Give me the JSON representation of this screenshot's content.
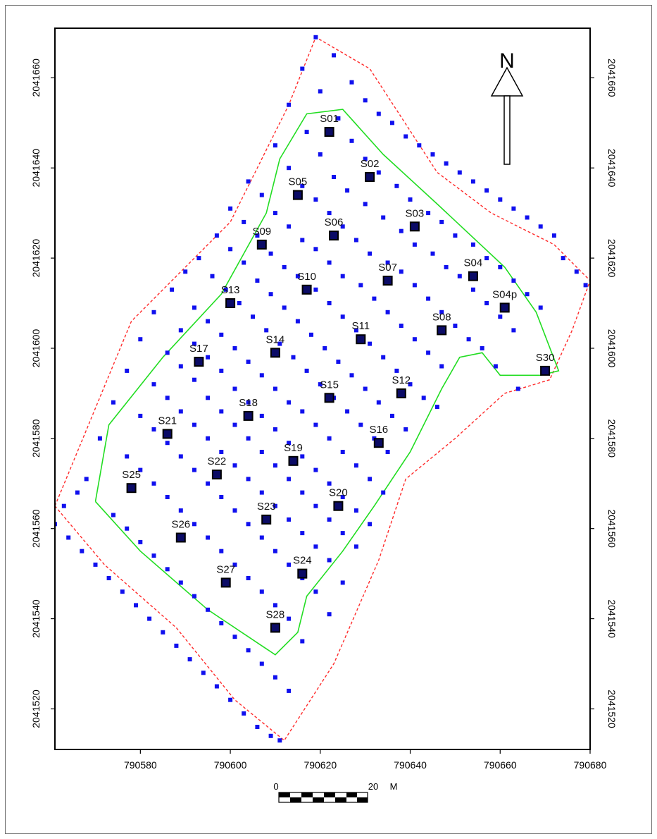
{
  "colors": {
    "boundary": "#ff2b2b",
    "inner_boundary": "#22dd22",
    "point": "#1010ee",
    "station_fill": "#0b0b66",
    "frame": "#000000"
  },
  "north_arrow": {
    "label": "N",
    "icon": "north-arrow-icon"
  },
  "scale_bar": {
    "start_label": "0",
    "end_label": "20",
    "unit_label": "M"
  },
  "axes": {
    "x_ticks": [
      {
        "value": 790580,
        "label": "790580"
      },
      {
        "value": 790600,
        "label": "790600"
      },
      {
        "value": 790620,
        "label": "790620"
      },
      {
        "value": 790640,
        "label": "790640"
      },
      {
        "value": 790660,
        "label": "790660"
      },
      {
        "value": 790680,
        "label": "790680"
      }
    ],
    "y_ticks": [
      {
        "value": 2041520,
        "label": "2041520"
      },
      {
        "value": 2041540,
        "label": "2041540"
      },
      {
        "value": 2041560,
        "label": "2041560"
      },
      {
        "value": 2041580,
        "label": "2041580"
      },
      {
        "value": 2041600,
        "label": "2041600"
      },
      {
        "value": 2041620,
        "label": "2041620"
      },
      {
        "value": 2041640,
        "label": "2041640"
      },
      {
        "value": 2041660,
        "label": "2041660"
      }
    ],
    "x_range": [
      790561,
      790680
    ],
    "y_range": [
      2041511,
      2041671
    ]
  },
  "stations": [
    {
      "label": "S01",
      "x": 790622,
      "y": 2041648
    },
    {
      "label": "S02",
      "x": 790631,
      "y": 2041638
    },
    {
      "label": "S03",
      "x": 790641,
      "y": 2041627
    },
    {
      "label": "S04",
      "x": 790654,
      "y": 2041616
    },
    {
      "label": "S04p",
      "x": 790661,
      "y": 2041609
    },
    {
      "label": "S05",
      "x": 790615,
      "y": 2041634
    },
    {
      "label": "S06",
      "x": 790623,
      "y": 2041625
    },
    {
      "label": "S07",
      "x": 790635,
      "y": 2041615
    },
    {
      "label": "S08",
      "x": 790647,
      "y": 2041604
    },
    {
      "label": "S09",
      "x": 790607,
      "y": 2041623
    },
    {
      "label": "S10",
      "x": 790617,
      "y": 2041613
    },
    {
      "label": "S11",
      "x": 790629,
      "y": 2041602
    },
    {
      "label": "S12",
      "x": 790638,
      "y": 2041590
    },
    {
      "label": "S13",
      "x": 790600,
      "y": 2041610
    },
    {
      "label": "S14",
      "x": 790610,
      "y": 2041599
    },
    {
      "label": "S15",
      "x": 790622,
      "y": 2041589
    },
    {
      "label": "S16",
      "x": 790633,
      "y": 2041579
    },
    {
      "label": "S17",
      "x": 790593,
      "y": 2041597
    },
    {
      "label": "S18",
      "x": 790604,
      "y": 2041585
    },
    {
      "label": "S19",
      "x": 790614,
      "y": 2041575
    },
    {
      "label": "S20",
      "x": 790624,
      "y": 2041565
    },
    {
      "label": "S21",
      "x": 790586,
      "y": 2041581
    },
    {
      "label": "S22",
      "x": 790597,
      "y": 2041572
    },
    {
      "label": "S23",
      "x": 790608,
      "y": 2041562
    },
    {
      "label": "S24",
      "x": 790616,
      "y": 2041550
    },
    {
      "label": "S25",
      "x": 790578,
      "y": 2041569
    },
    {
      "label": "S26",
      "x": 790589,
      "y": 2041558
    },
    {
      "label": "S27",
      "x": 790599,
      "y": 2041548
    },
    {
      "label": "S28",
      "x": 790610,
      "y": 2041538
    },
    {
      "label": "S30",
      "x": 790670,
      "y": 2041595
    }
  ],
  "outer_boundary": [
    [
      790561,
      2041565
    ],
    [
      790578,
      2041606
    ],
    [
      790600,
      2041628
    ],
    [
      790613,
      2041654
    ],
    [
      790619,
      2041669
    ],
    [
      790631,
      2041662
    ],
    [
      790646,
      2041639
    ],
    [
      790658,
      2041630
    ],
    [
      790672,
      2041623
    ],
    [
      790680,
      2041615
    ],
    [
      790676,
      2041604
    ],
    [
      790671,
      2041593
    ],
    [
      790661,
      2041590
    ],
    [
      790650,
      2041580
    ],
    [
      790639,
      2041571
    ],
    [
      790633,
      2041553
    ],
    [
      790623,
      2041530
    ],
    [
      790612,
      2041513
    ],
    [
      790601,
      2041522
    ],
    [
      790588,
      2041538
    ],
    [
      790572,
      2041552
    ],
    [
      790561,
      2041565
    ]
  ],
  "inner_boundary": [
    [
      790570,
      2041566
    ],
    [
      790573,
      2041583
    ],
    [
      790585,
      2041598
    ],
    [
      790598,
      2041612
    ],
    [
      790608,
      2041630
    ],
    [
      790611,
      2041642
    ],
    [
      790617,
      2041652
    ],
    [
      790625,
      2041653
    ],
    [
      790634,
      2041643
    ],
    [
      790646,
      2041632
    ],
    [
      790661,
      2041618
    ],
    [
      790668,
      2041608
    ],
    [
      790673,
      2041595
    ],
    [
      790669,
      2041594
    ],
    [
      790660,
      2041594
    ],
    [
      790656,
      2041599
    ],
    [
      790651,
      2041598
    ],
    [
      790647,
      2041591
    ],
    [
      790640,
      2041577
    ],
    [
      790632,
      2041565
    ],
    [
      790625,
      2041555
    ],
    [
      790617,
      2041545
    ],
    [
      790615,
      2041537
    ],
    [
      790610,
      2041532
    ],
    [
      790595,
      2041542
    ],
    [
      790580,
      2041555
    ],
    [
      790570,
      2041566
    ]
  ],
  "points": [
    [
      790619,
      2041669
    ],
    [
      790623,
      2041665
    ],
    [
      790616,
      2041662
    ],
    [
      790627,
      2041659
    ],
    [
      790620,
      2041657
    ],
    [
      790630,
      2041655
    ],
    [
      790613,
      2041654
    ],
    [
      790633,
      2041652
    ],
    [
      790624,
      2041651
    ],
    [
      790636,
      2041650
    ],
    [
      790617,
      2041648
    ],
    [
      790639,
      2041647
    ],
    [
      790627,
      2041646
    ],
    [
      790642,
      2041645
    ],
    [
      790610,
      2041645
    ],
    [
      790645,
      2041643
    ],
    [
      790620,
      2041643
    ],
    [
      790630,
      2041642
    ],
    [
      790648,
      2041641
    ],
    [
      790613,
      2041640
    ],
    [
      790651,
      2041639
    ],
    [
      790633,
      2041639
    ],
    [
      790623,
      2041638
    ],
    [
      790604,
      2041637
    ],
    [
      790654,
      2041637
    ],
    [
      790637,
      2041636
    ],
    [
      790616,
      2041636
    ],
    [
      790657,
      2041635
    ],
    [
      790626,
      2041635
    ],
    [
      790607,
      2041634
    ],
    [
      790640,
      2041633
    ],
    [
      790660,
      2041633
    ],
    [
      790619,
      2041633
    ],
    [
      790630,
      2041632
    ],
    [
      790600,
      2041631
    ],
    [
      790663,
      2041631
    ],
    [
      790644,
      2041630
    ],
    [
      790610,
      2041630
    ],
    [
      790622,
      2041630
    ],
    [
      790666,
      2041629
    ],
    [
      790634,
      2041629
    ],
    [
      790603,
      2041628
    ],
    [
      790647,
      2041628
    ],
    [
      790669,
      2041627
    ],
    [
      790613,
      2041627
    ],
    [
      790625,
      2041627
    ],
    [
      790638,
      2041626
    ],
    [
      790650,
      2041625
    ],
    [
      790597,
      2041625
    ],
    [
      790606,
      2041625
    ],
    [
      790672,
      2041625
    ],
    [
      790628,
      2041624
    ],
    [
      790616,
      2041624
    ],
    [
      790641,
      2041623
    ],
    [
      790654,
      2041623
    ],
    [
      790600,
      2041622
    ],
    [
      790619,
      2041622
    ],
    [
      790631,
      2041621
    ],
    [
      790609,
      2041621
    ],
    [
      790645,
      2041621
    ],
    [
      790657,
      2041620
    ],
    [
      790674,
      2041620
    ],
    [
      790593,
      2041620
    ],
    [
      790635,
      2041619
    ],
    [
      790622,
      2041619
    ],
    [
      790603,
      2041619
    ],
    [
      790648,
      2041618
    ],
    [
      790612,
      2041618
    ],
    [
      790660,
      2041618
    ],
    [
      790677,
      2041617
    ],
    [
      790638,
      2041617
    ],
    [
      790590,
      2041617
    ],
    [
      790625,
      2041616
    ],
    [
      790651,
      2041616
    ],
    [
      790596,
      2041616
    ],
    [
      790615,
      2041616
    ],
    [
      790606,
      2041615
    ],
    [
      790663,
      2041615
    ],
    [
      790641,
      2041614
    ],
    [
      790629,
      2041614
    ],
    [
      790679,
      2041614
    ],
    [
      790654,
      2041613
    ],
    [
      790599,
      2041613
    ],
    [
      790619,
      2041613
    ],
    [
      790587,
      2041613
    ],
    [
      790666,
      2041612
    ],
    [
      790609,
      2041612
    ],
    [
      790644,
      2041611
    ],
    [
      790632,
      2041611
    ],
    [
      790602,
      2041610
    ],
    [
      790622,
      2041610
    ],
    [
      790657,
      2041610
    ],
    [
      790592,
      2041609
    ],
    [
      790669,
      2041609
    ],
    [
      790612,
      2041609
    ],
    [
      790647,
      2041608
    ],
    [
      790635,
      2041608
    ],
    [
      790583,
      2041608
    ],
    [
      790605,
      2041607
    ],
    [
      790625,
      2041607
    ],
    [
      790660,
      2041607
    ],
    [
      790595,
      2041606
    ],
    [
      790615,
      2041606
    ],
    [
      790650,
      2041605
    ],
    [
      790638,
      2041605
    ],
    [
      790608,
      2041604
    ],
    [
      790589,
      2041604
    ],
    [
      790628,
      2041604
    ],
    [
      790663,
      2041604
    ],
    [
      790598,
      2041603
    ],
    [
      790618,
      2041603
    ],
    [
      790641,
      2041602
    ],
    [
      790653,
      2041602
    ],
    [
      790580,
      2041602
    ],
    [
      790611,
      2041601
    ],
    [
      790631,
      2041601
    ],
    [
      790592,
      2041601
    ],
    [
      790656,
      2041600
    ],
    [
      790601,
      2041600
    ],
    [
      790621,
      2041600
    ],
    [
      790644,
      2041599
    ],
    [
      790586,
      2041599
    ],
    [
      790634,
      2041598
    ],
    [
      790614,
      2041598
    ],
    [
      790595,
      2041598
    ],
    [
      790604,
      2041597
    ],
    [
      790624,
      2041597
    ],
    [
      790647,
      2041596
    ],
    [
      790589,
      2041596
    ],
    [
      790659,
      2041596
    ],
    [
      790637,
      2041595
    ],
    [
      790577,
      2041595
    ],
    [
      790617,
      2041595
    ],
    [
      790598,
      2041595
    ],
    [
      790607,
      2041594
    ],
    [
      790627,
      2041594
    ],
    [
      790592,
      2041593
    ],
    [
      790640,
      2041592
    ],
    [
      790583,
      2041592
    ],
    [
      790620,
      2041592
    ],
    [
      790610,
      2041591
    ],
    [
      790601,
      2041591
    ],
    [
      790630,
      2041591
    ],
    [
      790664,
      2041591
    ],
    [
      790643,
      2041589
    ],
    [
      790595,
      2041589
    ],
    [
      790586,
      2041589
    ],
    [
      790623,
      2041589
    ],
    [
      790613,
      2041588
    ],
    [
      790604,
      2041588
    ],
    [
      790633,
      2041588
    ],
    [
      790574,
      2041588
    ],
    [
      790646,
      2041587
    ],
    [
      790616,
      2041586
    ],
    [
      790589,
      2041586
    ],
    [
      790598,
      2041586
    ],
    [
      790626,
      2041586
    ],
    [
      790607,
      2041585
    ],
    [
      790636,
      2041585
    ],
    [
      790580,
      2041585
    ],
    [
      790619,
      2041583
    ],
    [
      790592,
      2041583
    ],
    [
      790601,
      2041583
    ],
    [
      790629,
      2041583
    ],
    [
      790610,
      2041582
    ],
    [
      790639,
      2041582
    ],
    [
      790583,
      2041582
    ],
    [
      790622,
      2041580
    ],
    [
      790595,
      2041580
    ],
    [
      790604,
      2041580
    ],
    [
      790571,
      2041580
    ],
    [
      790632,
      2041580
    ],
    [
      790613,
      2041579
    ],
    [
      790586,
      2041579
    ],
    [
      790625,
      2041577
    ],
    [
      790598,
      2041577
    ],
    [
      790607,
      2041577
    ],
    [
      790635,
      2041577
    ],
    [
      790616,
      2041576
    ],
    [
      790577,
      2041576
    ],
    [
      790589,
      2041576
    ],
    [
      790628,
      2041574
    ],
    [
      790601,
      2041574
    ],
    [
      790610,
      2041574
    ],
    [
      790619,
      2041573
    ],
    [
      790592,
      2041573
    ],
    [
      790580,
      2041573
    ],
    [
      790631,
      2041571
    ],
    [
      790604,
      2041571
    ],
    [
      790613,
      2041571
    ],
    [
      790568,
      2041571
    ],
    [
      790622,
      2041570
    ],
    [
      790595,
      2041570
    ],
    [
      790583,
      2041570
    ],
    [
      790607,
      2041568
    ],
    [
      790634,
      2041568
    ],
    [
      790616,
      2041568
    ],
    [
      790566,
      2041568
    ],
    [
      790625,
      2041567
    ],
    [
      790598,
      2041567
    ],
    [
      790586,
      2041567
    ],
    [
      790610,
      2041565
    ],
    [
      790563,
      2041565
    ],
    [
      790619,
      2041565
    ],
    [
      790628,
      2041564
    ],
    [
      790601,
      2041564
    ],
    [
      790589,
      2041564
    ],
    [
      790574,
      2041563
    ],
    [
      790613,
      2041562
    ],
    [
      790622,
      2041562
    ],
    [
      790631,
      2041561
    ],
    [
      790604,
      2041561
    ],
    [
      790592,
      2041561
    ],
    [
      790561,
      2041561
    ],
    [
      790577,
      2041560
    ],
    [
      790616,
      2041559
    ],
    [
      790625,
      2041559
    ],
    [
      790607,
      2041558
    ],
    [
      790595,
      2041558
    ],
    [
      790564,
      2041558
    ],
    [
      790580,
      2041557
    ],
    [
      790619,
      2041556
    ],
    [
      790628,
      2041556
    ],
    [
      790610,
      2041555
    ],
    [
      790598,
      2041555
    ],
    [
      790567,
      2041555
    ],
    [
      790583,
      2041554
    ],
    [
      790622,
      2041553
    ],
    [
      790613,
      2041552
    ],
    [
      790601,
      2041552
    ],
    [
      790570,
      2041552
    ],
    [
      790586,
      2041551
    ],
    [
      790616,
      2041549
    ],
    [
      790604,
      2041549
    ],
    [
      790573,
      2041549
    ],
    [
      790589,
      2041548
    ],
    [
      790625,
      2041548
    ],
    [
      790619,
      2041546
    ],
    [
      790607,
      2041546
    ],
    [
      790576,
      2041546
    ],
    [
      790592,
      2041545
    ],
    [
      790610,
      2041543
    ],
    [
      790579,
      2041543
    ],
    [
      790595,
      2041542
    ],
    [
      790622,
      2041541
    ],
    [
      790613,
      2041540
    ],
    [
      790582,
      2041540
    ],
    [
      790598,
      2041539
    ],
    [
      790585,
      2041537
    ],
    [
      790601,
      2041536
    ],
    [
      790616,
      2041535
    ],
    [
      790588,
      2041534
    ],
    [
      790604,
      2041533
    ],
    [
      790591,
      2041531
    ],
    [
      790607,
      2041530
    ],
    [
      790594,
      2041528
    ],
    [
      790610,
      2041527
    ],
    [
      790597,
      2041525
    ],
    [
      790613,
      2041524
    ],
    [
      790600,
      2041522
    ],
    [
      790603,
      2041519
    ],
    [
      790606,
      2041516
    ],
    [
      790609,
      2041514
    ],
    [
      790611,
      2041513
    ]
  ]
}
